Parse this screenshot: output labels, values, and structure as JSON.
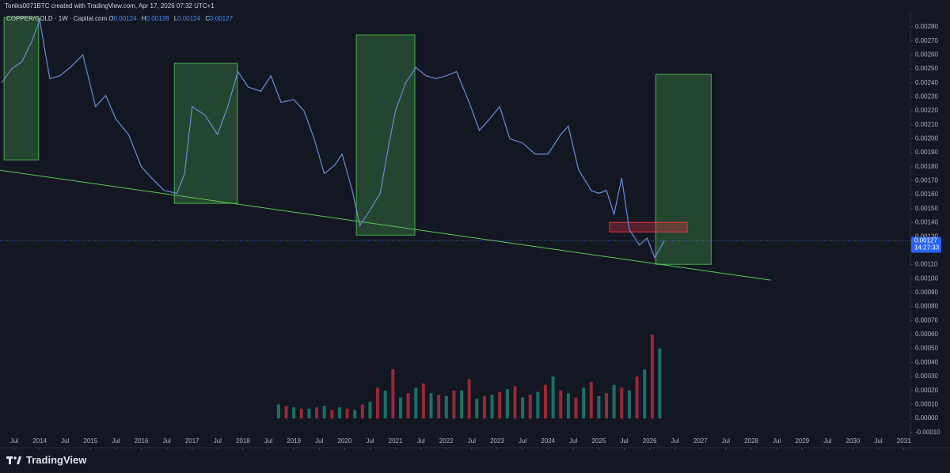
{
  "header": {
    "title": "Toniks0071BTC created with TradingView.com, Apr 17, 2026 07:32 UTC+1"
  },
  "legend": {
    "symbol": "COPPER/GOLD · 1W · Capital.com",
    "o_label": "O",
    "o": "0.00124",
    "h_label": "H",
    "h": "0.00128",
    "l_label": "L",
    "l": "0.00124",
    "c_label": "C",
    "c": "0.00127"
  },
  "footer": {
    "brand": "TradingView"
  },
  "chart_data": {
    "type": "line",
    "last_price": {
      "value": 0.00127,
      "label": "0.00127"
    },
    "countdown": "14:27:33",
    "xlim": [
      2013.22,
      2031.13
    ],
    "ylim": [
      -0.00013,
      0.002913
    ],
    "xticks": [
      {
        "value": 2013.5,
        "label": "Jul"
      },
      2014,
      {
        "value": 2014.5,
        "label": "Jul"
      },
      2015,
      {
        "value": 2015.5,
        "label": "Jul"
      },
      2016,
      {
        "value": 2016.5,
        "label": "Jul"
      },
      2017,
      {
        "value": 2017.5,
        "label": "Jul"
      },
      2018,
      {
        "value": 2018.5,
        "label": "Jul"
      },
      2019,
      {
        "value": 2019.5,
        "label": "Jul"
      },
      2020,
      {
        "value": 2020.5,
        "label": "Jul"
      },
      2021,
      {
        "value": 2021.5,
        "label": "Jul"
      },
      2022,
      {
        "value": 2022.5,
        "label": "Jul"
      },
      2023,
      {
        "value": 2023.5,
        "label": "Jul"
      },
      2024,
      {
        "value": 2024.5,
        "label": "Jul"
      },
      2025,
      {
        "value": 2025.5,
        "label": "Jul"
      },
      2026,
      {
        "value": 2026.5,
        "label": "Jul"
      },
      2027,
      {
        "value": 2027.5,
        "label": "Jul"
      },
      2028,
      {
        "value": 2028.5,
        "label": "Jul"
      },
      2029,
      {
        "value": 2029.5,
        "label": "Jul"
      },
      2030,
      {
        "value": 2030.5,
        "label": "Jul"
      },
      2031
    ],
    "yticks": [
      {
        "value": 0.0028,
        "label": "0.00280"
      },
      {
        "value": 0.0027,
        "label": "0.00270"
      },
      {
        "value": 0.0026,
        "label": "0.00260"
      },
      {
        "value": 0.0025,
        "label": "0.00250"
      },
      {
        "value": 0.0024,
        "label": "0.00240"
      },
      {
        "value": 0.0023,
        "label": "0.00230"
      },
      {
        "value": 0.0022,
        "label": "0.00220"
      },
      {
        "value": 0.0021,
        "label": "0.00210"
      },
      {
        "value": 0.002,
        "label": "0.00200"
      },
      {
        "value": 0.0019,
        "label": "0.00190"
      },
      {
        "value": 0.0018,
        "label": "0.00180"
      },
      {
        "value": 0.0017,
        "label": "0.00170"
      },
      {
        "value": 0.0016,
        "label": "0.00160"
      },
      {
        "value": 0.0015,
        "label": "0.00150"
      },
      {
        "value": 0.0014,
        "label": "0.00140"
      },
      {
        "value": 0.0013,
        "label": "0.00130"
      },
      {
        "value": 0.0012,
        "label": "0.00120"
      },
      {
        "value": 0.0011,
        "label": "0.00110"
      },
      {
        "value": 0.001,
        "label": "0.00100"
      },
      {
        "value": 0.0009,
        "label": "0.00090"
      },
      {
        "value": 0.0008,
        "label": "0.00080"
      },
      {
        "value": 0.0007,
        "label": "0.00070"
      },
      {
        "value": 0.0006,
        "label": "0.00060"
      },
      {
        "value": 0.0005,
        "label": "0.00050"
      },
      {
        "value": 0.0004,
        "label": "0.00040"
      },
      {
        "value": 0.0003,
        "label": "0.00030"
      },
      {
        "value": 0.0002,
        "label": "0.00020"
      },
      {
        "value": 0.0001,
        "label": "0.00010"
      },
      {
        "value": 0,
        "label": "0.00000"
      },
      {
        "value": -0.0001,
        "label": "-0.00010"
      }
    ],
    "series": [
      {
        "color": "#6a8fd8",
        "x": [
          2013.25,
          2013.45,
          2013.65,
          2013.85,
          2014.0,
          2014.2,
          2014.4,
          2014.6,
          2014.85,
          2015.1,
          2015.3,
          2015.5,
          2015.75,
          2016.0,
          2016.2,
          2016.45,
          2016.7,
          2016.85,
          2017.0,
          2017.25,
          2017.5,
          2017.7,
          2017.9,
          2018.1,
          2018.35,
          2018.55,
          2018.75,
          2019.0,
          2019.2,
          2019.4,
          2019.6,
          2019.8,
          2019.95,
          2020.15,
          2020.3,
          2020.5,
          2020.7,
          2020.85,
          2021.0,
          2021.2,
          2021.4,
          2021.6,
          2021.8,
          2022.0,
          2022.2,
          2022.45,
          2022.65,
          2022.85,
          2023.05,
          2023.25,
          2023.5,
          2023.75,
          2024.0,
          2024.25,
          2024.4,
          2024.6,
          2024.85,
          2025.0,
          2025.15,
          2025.3,
          2025.45,
          2025.6,
          2025.8,
          2025.95,
          2026.1,
          2026.29
        ],
        "values": [
          0.0024,
          0.0025,
          0.00255,
          0.0027,
          0.00285,
          0.00243,
          0.00245,
          0.00251,
          0.0026,
          0.00223,
          0.00231,
          0.00214,
          0.00203,
          0.0018,
          0.00172,
          0.00163,
          0.00161,
          0.00175,
          0.00223,
          0.00217,
          0.00203,
          0.00223,
          0.00248,
          0.00237,
          0.00234,
          0.00245,
          0.00226,
          0.00228,
          0.0022,
          0.002,
          0.00175,
          0.00181,
          0.00189,
          0.00163,
          0.00138,
          0.00149,
          0.00161,
          0.00192,
          0.0022,
          0.0024,
          0.00251,
          0.00245,
          0.00243,
          0.00245,
          0.00248,
          0.00226,
          0.00206,
          0.00214,
          0.00223,
          0.002,
          0.00197,
          0.00189,
          0.00189,
          0.00203,
          0.00209,
          0.00178,
          0.00163,
          0.00161,
          0.00163,
          0.00146,
          0.00172,
          0.00135,
          0.00124,
          0.00129,
          0.00115,
          0.00127
        ]
      }
    ],
    "volume": [
      {
        "color": "#22ab94",
        "x": [
          2018.7,
          2019.0,
          2019.3,
          2019.6,
          2019.9,
          2020.2,
          2020.5,
          2020.8,
          2021.1,
          2021.4,
          2021.7,
          2022.0,
          2022.3,
          2022.6,
          2022.9,
          2023.2,
          2023.5,
          2023.8,
          2024.1,
          2024.4,
          2024.7,
          2025.0,
          2025.3,
          2025.6,
          2025.9,
          2026.2
        ],
        "values": [
          0.0001,
          8e-05,
          7e-05,
          9e-05,
          8e-05,
          6e-05,
          0.00012,
          0.0002,
          0.00015,
          0.00022,
          0.00018,
          0.00016,
          0.0002,
          0.00014,
          0.00017,
          0.00021,
          0.00015,
          0.00019,
          0.0003,
          0.00018,
          0.00022,
          0.00016,
          0.00024,
          0.0002,
          0.00035,
          0.0005
        ]
      },
      {
        "color": "#f23645",
        "x": [
          2018.85,
          2019.15,
          2019.45,
          2019.75,
          2020.05,
          2020.35,
          2020.65,
          2020.95,
          2021.25,
          2021.55,
          2021.85,
          2022.15,
          2022.45,
          2022.75,
          2023.05,
          2023.35,
          2023.65,
          2023.95,
          2024.25,
          2024.55,
          2024.85,
          2025.15,
          2025.45,
          2025.75,
          2026.05
        ],
        "values": [
          9e-05,
          7e-05,
          8e-05,
          6e-05,
          7e-05,
          0.0001,
          0.00022,
          0.00035,
          0.00018,
          0.00025,
          0.00017,
          0.0002,
          0.00028,
          0.00016,
          0.00019,
          0.00023,
          0.00017,
          0.00024,
          0.0002,
          0.00015,
          0.00026,
          0.00018,
          0.00022,
          0.0003,
          0.0006
        ]
      }
    ],
    "boxes": [
      {
        "x": [
          2013.3,
          2013.98
        ],
        "y": [
          0.001849,
          0.002868
        ],
        "color": "#4caf50"
      },
      {
        "x": [
          2016.65,
          2017.89
        ],
        "y": [
          0.001538,
          0.002539
        ],
        "color": "#4caf50"
      },
      {
        "x": [
          2020.23,
          2021.38
        ],
        "y": [
          0.001311,
          0.002743
        ],
        "color": "#4caf50"
      },
      {
        "x": [
          2026.12,
          2027.21
        ],
        "y": [
          0.001102,
          0.00246
        ],
        "color": "#4caf50"
      },
      {
        "x": [
          2025.21,
          2026.74
        ],
        "y": [
          0.001334,
          0.001402
        ],
        "color": "#f23645"
      }
    ],
    "trendline": {
      "x": [
        2013.22,
        2028.38
      ],
      "y": [
        0.001775,
        0.000989
      ],
      "color": "#5cc95c"
    }
  }
}
